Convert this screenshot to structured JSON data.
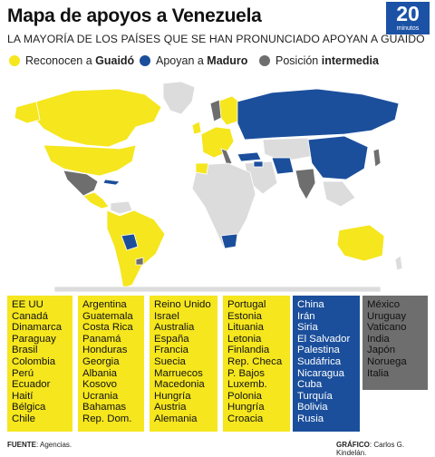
{
  "header": {
    "title": "Mapa de apoyos a Venezuela",
    "subtitle": "LA MAYORÍA DE LOS PAÍSES QUE SE HAN PRONUNCIADO APOYAN A GUAIDÓ",
    "brand_number": "20",
    "brand_word": "minutos"
  },
  "legend": [
    {
      "prefix": "Reconocen a ",
      "bold": "Guaidó",
      "color": "#f5e61e"
    },
    {
      "prefix": "Apoyan a ",
      "bold": "Maduro",
      "color": "#1b4f9c"
    },
    {
      "prefix": "Posición ",
      "bold": "intermedia",
      "color": "#6e6e6e"
    }
  ],
  "colors": {
    "guaido": "#f5e61e",
    "maduro": "#1b4f9c",
    "intermedia": "#6e6e6e",
    "neutral": "#dcdcdc"
  },
  "columns": [
    {
      "group": "guaido",
      "countries": [
        "EE UU",
        "Canadá",
        "Dinamarca",
        "Paraguay",
        "Brasil",
        "Colombia",
        "Perú",
        "Ecuador",
        "Haití",
        "Bélgica",
        "Chile"
      ]
    },
    {
      "group": "guaido",
      "countries": [
        "Argentina",
        "Guatemala",
        "Costa Rica",
        "Panamá",
        "Honduras",
        "Georgia",
        "Albania",
        "Kosovo",
        "Ucrania",
        "Bahamas",
        "Rep. Dom."
      ]
    },
    {
      "group": "guaido",
      "countries": [
        "Reino Unido",
        "Israel",
        "Australia",
        "España",
        "Francia",
        "Suecia",
        "Marruecos",
        "Macedonia",
        "Hungría",
        "Austria",
        "Alemania"
      ]
    },
    {
      "group": "guaido",
      "countries": [
        "Portugal",
        "Estonia",
        "Lituania",
        "Letonia",
        "Finlandia",
        "Rep. Checa",
        "P. Bajos",
        "Luxemb.",
        "Polonia",
        "Hungría",
        "Croacia"
      ]
    },
    {
      "group": "maduro",
      "countries": [
        "China",
        "Irán",
        "Siria",
        "El Salvador",
        "Palestina",
        "Sudáfrica",
        "Nicaragua",
        "Cuba",
        "Turquía",
        "Bolivia",
        "Rusia"
      ]
    },
    {
      "group": "intermedia",
      "countries": [
        "México",
        "Uruguay",
        "Vaticano",
        "India",
        "Japón",
        "Noruega",
        "Italia"
      ]
    }
  ],
  "footer": {
    "source_label": "FUENTE",
    "source_text": ": Agencias.",
    "credit_label": "GRÁFICO",
    "credit_text": ": Carlos G. Kindelán."
  }
}
